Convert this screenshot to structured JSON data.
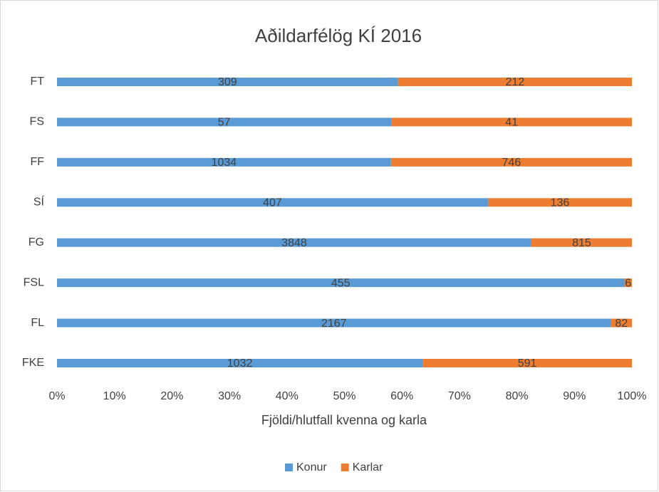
{
  "chart_data": {
    "type": "bar",
    "orientation": "horizontal",
    "stacked": "percent",
    "title": "Aðildarfélög KÍ 2016",
    "x_label": "Fjöldi/hlutfall kvenna og karla",
    "categories": [
      "FT",
      "FS",
      "FF",
      "SÍ",
      "FG",
      "FSL",
      "FL",
      "FKE"
    ],
    "series": [
      {
        "name": "Konur",
        "color": "#5b9bd5",
        "values": [
          309,
          57,
          1034,
          407,
          3848,
          455,
          2167,
          1032
        ]
      },
      {
        "name": "Karlar",
        "color": "#ed7d31",
        "values": [
          212,
          41,
          746,
          136,
          815,
          6,
          82,
          591
        ]
      }
    ],
    "xlim": [
      0,
      100
    ],
    "xticks": [
      {
        "value": 0,
        "label": "0%"
      },
      {
        "value": 10,
        "label": "10%"
      },
      {
        "value": 20,
        "label": "20%"
      },
      {
        "value": 30,
        "label": "30%"
      },
      {
        "value": 40,
        "label": "40%"
      },
      {
        "value": 50,
        "label": "50%"
      },
      {
        "value": 60,
        "label": "60%"
      },
      {
        "value": 70,
        "label": "70%"
      },
      {
        "value": 80,
        "label": "80%"
      },
      {
        "value": 90,
        "label": "90%"
      },
      {
        "value": 100,
        "label": "100%"
      }
    ],
    "grid": false,
    "legend": "bottom"
  }
}
